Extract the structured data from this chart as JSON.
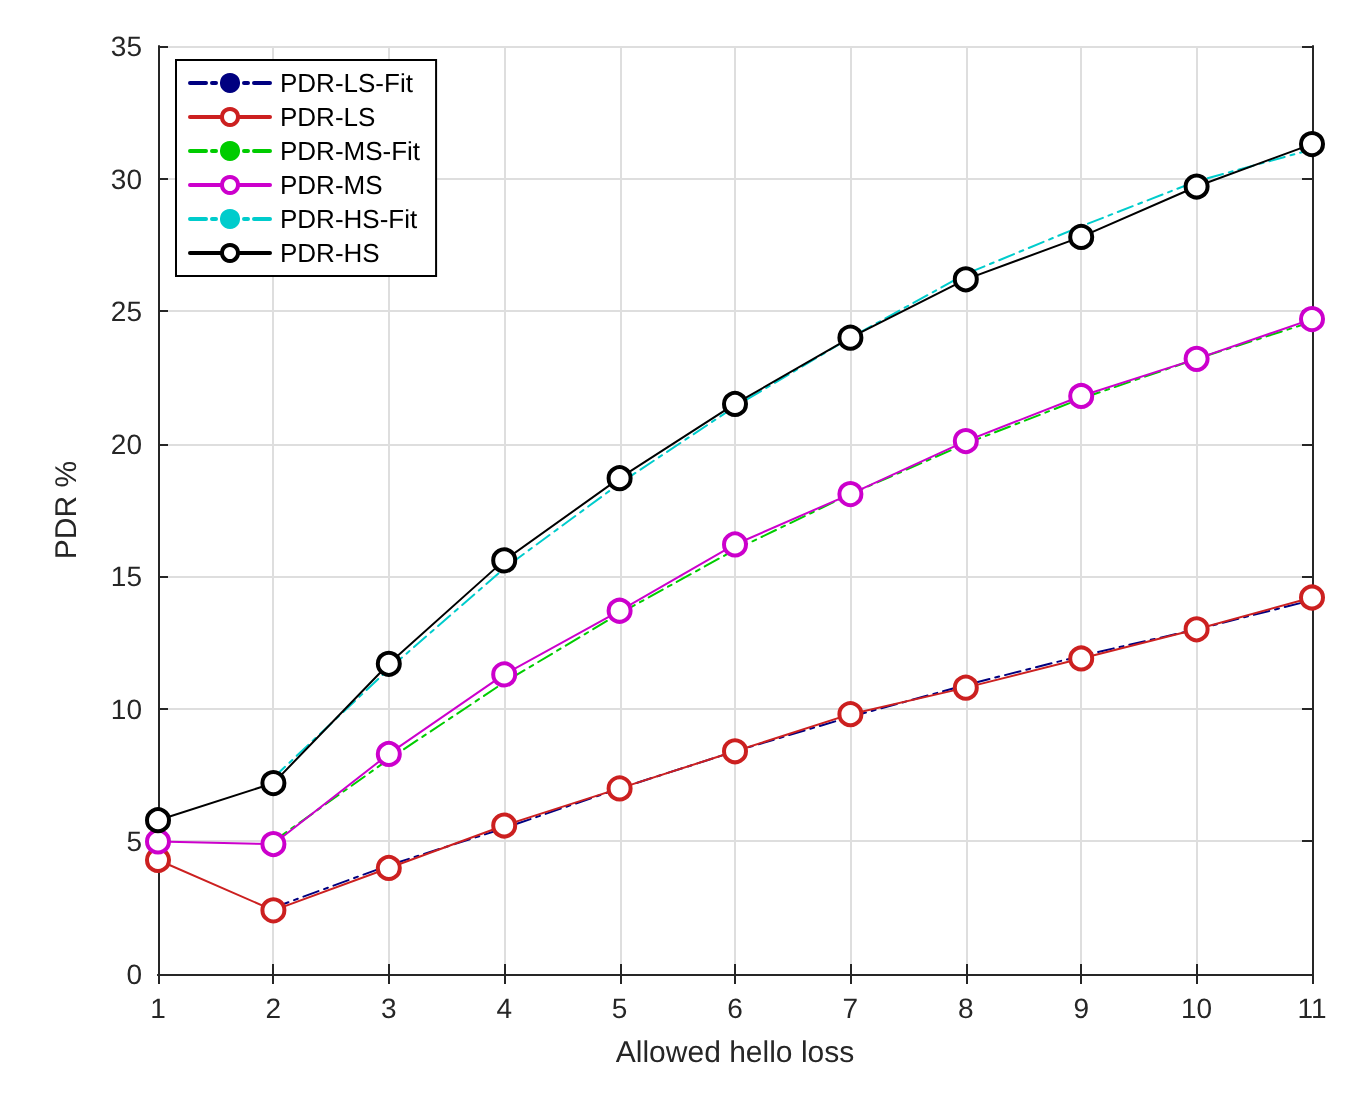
{
  "chart_data": {
    "type": "line",
    "xlabel": "Allowed hello loss",
    "ylabel": "PDR %",
    "xlim": [
      1,
      11
    ],
    "xticks": [
      1,
      2,
      3,
      4,
      5,
      6,
      7,
      8,
      9,
      10,
      11
    ],
    "ylim": [
      0,
      35
    ],
    "yticks": [
      0,
      5,
      10,
      15,
      20,
      25,
      30,
      35
    ],
    "grid": true,
    "legend": "top left",
    "series": [
      {
        "name": "PDR-LS-Fit",
        "color": "#000080",
        "line_style": "dashed",
        "marker": "none",
        "x": [
          2,
          3,
          4,
          5,
          6,
          7,
          8,
          9,
          10,
          11
        ],
        "values": [
          2.5,
          4.1,
          5.5,
          7.0,
          8.4,
          9.7,
          10.9,
          12.0,
          13.0,
          14.1
        ]
      },
      {
        "name": "PDR-LS",
        "color": "#cc2020",
        "line_style": "solid",
        "marker": "circle",
        "x": [
          1,
          2,
          3,
          4,
          5,
          6,
          7,
          8,
          9,
          10,
          11
        ],
        "values": [
          4.3,
          2.4,
          4.0,
          5.6,
          7.0,
          8.4,
          9.8,
          10.8,
          11.9,
          13.0,
          14.2
        ]
      },
      {
        "name": "PDR-MS-Fit",
        "color": "#00cc00",
        "line_style": "dashed",
        "marker": "none",
        "x": [
          2,
          3,
          4,
          5,
          6,
          7,
          8,
          9,
          10,
          11
        ],
        "values": [
          5.0,
          8.1,
          11.0,
          13.6,
          16.0,
          18.1,
          20.0,
          21.7,
          23.2,
          24.6
        ]
      },
      {
        "name": "PDR-MS",
        "color": "#cc00cc",
        "line_style": "solid",
        "marker": "circle",
        "x": [
          1,
          2,
          3,
          4,
          5,
          6,
          7,
          8,
          9,
          10,
          11
        ],
        "values": [
          5.0,
          4.9,
          8.3,
          11.3,
          13.7,
          16.2,
          18.1,
          20.1,
          21.8,
          23.2,
          24.7
        ]
      },
      {
        "name": "PDR-HS-Fit",
        "color": "#00cccc",
        "line_style": "dashed",
        "marker": "none",
        "x": [
          2,
          3,
          4,
          5,
          6,
          7,
          8,
          9,
          10,
          11
        ],
        "values": [
          7.4,
          11.5,
          15.3,
          18.5,
          21.4,
          24.0,
          26.4,
          28.2,
          29.9,
          31.1
        ]
      },
      {
        "name": "PDR-HS",
        "color": "#000000",
        "line_style": "solid",
        "marker": "circle",
        "x": [
          1,
          2,
          3,
          4,
          5,
          6,
          7,
          8,
          9,
          10,
          11
        ],
        "values": [
          5.8,
          7.2,
          11.7,
          15.6,
          18.7,
          21.5,
          24.0,
          26.2,
          27.8,
          29.7,
          31.3
        ]
      }
    ]
  }
}
